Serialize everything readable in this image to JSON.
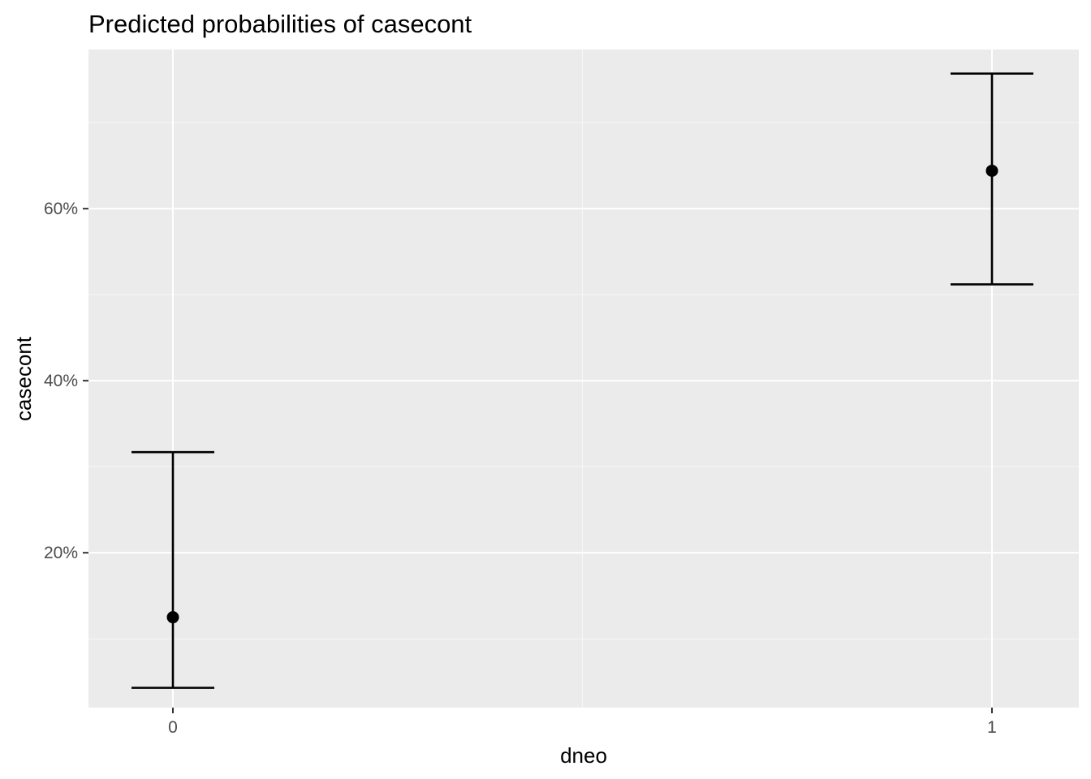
{
  "chart_data": {
    "type": "scatter",
    "title": "Predicted probabilities of casecont",
    "xlabel": "dneo",
    "ylabel": "casecont",
    "categories": [
      "0",
      "1"
    ],
    "y_ticks": [
      0.2,
      0.4,
      0.6
    ],
    "y_tick_labels": [
      "20%",
      "40%",
      "60%"
    ],
    "ylim": [
      0.02,
      0.785
    ],
    "grid": true,
    "series": [
      {
        "points": [
          {
            "x": "0",
            "y": 0.125,
            "ymin": 0.043,
            "ymax": 0.317
          },
          {
            "x": "1",
            "y": 0.644,
            "ymin": 0.512,
            "ymax": 0.757
          }
        ]
      }
    ],
    "colors": {
      "panel": "#ebebeb",
      "grid_major": "#ffffff",
      "marks": "#000000",
      "tick_text": "#4d4d4d"
    }
  }
}
